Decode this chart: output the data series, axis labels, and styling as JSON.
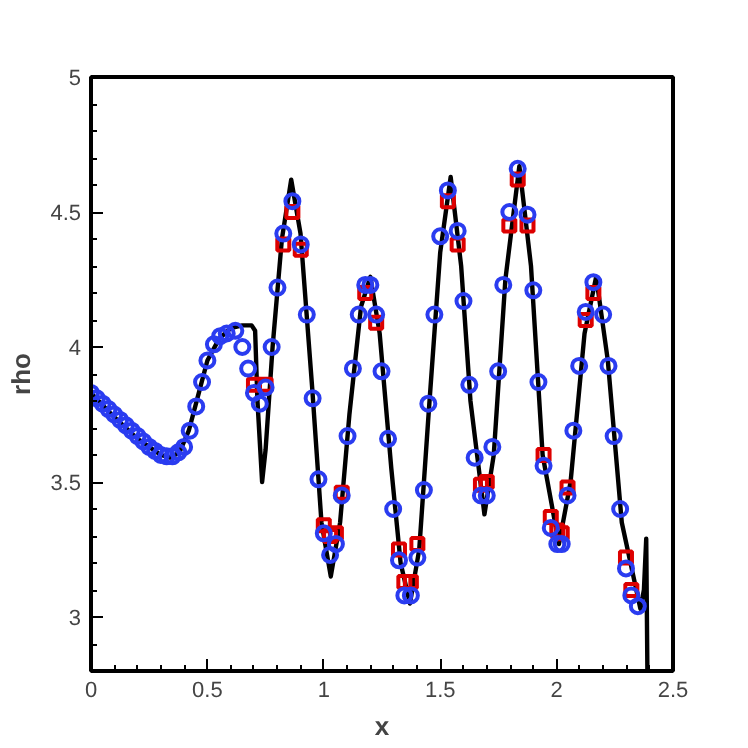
{
  "chart_data": {
    "type": "scatter",
    "xlabel": "x",
    "ylabel": "rho",
    "xlim": [
      0,
      2.5
    ],
    "ylim": [
      2.8,
      5
    ],
    "xticks": [
      0,
      0.5,
      1,
      1.5,
      2,
      2.5
    ],
    "yticks": [
      3,
      3.5,
      4,
      4.5,
      5
    ],
    "grid": false,
    "series": [
      {
        "type": "line",
        "color": "#000000",
        "marker": "none",
        "line_style": "solid",
        "x": [
          0,
          0.1,
          0.2,
          0.3,
          0.34,
          0.38,
          0.42,
          0.46,
          0.5,
          0.55,
          0.6,
          0.65,
          0.69,
          0.705,
          0.715,
          0.735,
          0.75,
          0.78,
          0.82,
          0.86,
          0.9,
          0.95,
          0.99,
          1.03,
          1.07,
          1.11,
          1.16,
          1.2,
          1.24,
          1.29,
          1.33,
          1.37,
          1.41,
          1.45,
          1.5,
          1.545,
          1.59,
          1.63,
          1.69,
          1.73,
          1.78,
          1.84,
          1.89,
          1.94,
          2.01,
          2.06,
          2.12,
          2.17,
          2.22,
          2.28,
          2.36,
          2.375,
          2.385,
          2.39
        ],
        "values": [
          3.83,
          3.74,
          3.66,
          3.6,
          3.59,
          3.61,
          3.69,
          3.82,
          3.95,
          4.03,
          4.07,
          4.08,
          4.08,
          4.06,
          3.8,
          3.5,
          3.62,
          4.0,
          4.4,
          4.62,
          4.42,
          3.85,
          3.35,
          3.15,
          3.35,
          3.75,
          4.15,
          4.26,
          4.05,
          3.55,
          3.2,
          3.05,
          3.25,
          3.75,
          4.35,
          4.63,
          4.3,
          3.8,
          3.38,
          3.6,
          4.25,
          4.67,
          4.3,
          3.6,
          3.27,
          3.5,
          4.05,
          4.26,
          3.95,
          3.35,
          3.03,
          3.1,
          3.29,
          2.8
        ]
      },
      {
        "color": "#dd0000",
        "marker": "square",
        "x": [
          0.7,
          0.75,
          0.826,
          0.865,
          0.901,
          1.0,
          1.027,
          1.052,
          1.077,
          1.178,
          1.225,
          1.323,
          1.346,
          1.374,
          1.402,
          1.533,
          1.575,
          1.675,
          1.7,
          1.797,
          1.833,
          1.875,
          1.944,
          1.975,
          2.003,
          2.022,
          2.047,
          2.125,
          2.158,
          2.298,
          2.321
        ],
        "values": [
          3.86,
          3.86,
          4.38,
          4.5,
          4.36,
          3.34,
          3.3,
          3.31,
          3.46,
          4.2,
          4.09,
          3.25,
          3.13,
          3.13,
          3.27,
          4.54,
          4.38,
          3.49,
          3.5,
          4.45,
          4.62,
          4.45,
          3.6,
          3.37,
          3.32,
          3.31,
          3.48,
          4.1,
          4.2,
          3.22,
          3.1
        ]
      },
      {
        "color": "#2a3cf0",
        "marker": "circle",
        "x": [
          0,
          0.025,
          0.05,
          0.075,
          0.1,
          0.125,
          0.15,
          0.175,
          0.2,
          0.225,
          0.25,
          0.275,
          0.3,
          0.325,
          0.35,
          0.375,
          0.4,
          0.424,
          0.452,
          0.477,
          0.5,
          0.528,
          0.555,
          0.583,
          0.62,
          0.65,
          0.675,
          0.7,
          0.725,
          0.75,
          0.776,
          0.801,
          0.826,
          0.865,
          0.901,
          0.927,
          0.952,
          0.977,
          1.0,
          1.027,
          1.052,
          1.077,
          1.102,
          1.125,
          1.15,
          1.178,
          1.2,
          1.225,
          1.248,
          1.276,
          1.298,
          1.323,
          1.346,
          1.374,
          1.402,
          1.43,
          1.449,
          1.475,
          1.5,
          1.533,
          1.575,
          1.6,
          1.625,
          1.648,
          1.675,
          1.7,
          1.724,
          1.749,
          1.771,
          1.797,
          1.833,
          1.875,
          1.9,
          1.922,
          1.944,
          1.975,
          2.003,
          2.022,
          2.047,
          2.072,
          2.097,
          2.125,
          2.158,
          2.2,
          2.223,
          2.245,
          2.273,
          2.298,
          2.321,
          2.349
        ],
        "values": [
          3.83,
          3.81,
          3.79,
          3.77,
          3.75,
          3.73,
          3.71,
          3.69,
          3.67,
          3.65,
          3.63,
          3.615,
          3.6,
          3.595,
          3.595,
          3.61,
          3.63,
          3.69,
          3.78,
          3.87,
          3.95,
          4.01,
          4.04,
          4.05,
          4.06,
          4.0,
          3.92,
          3.83,
          3.79,
          3.85,
          4.0,
          4.22,
          4.42,
          4.54,
          4.38,
          4.12,
          3.81,
          3.51,
          3.31,
          3.23,
          3.27,
          3.45,
          3.67,
          3.92,
          4.12,
          4.23,
          4.23,
          4.12,
          3.91,
          3.66,
          3.4,
          3.21,
          3.08,
          3.08,
          3.22,
          3.47,
          3.79,
          4.12,
          4.41,
          4.58,
          4.43,
          4.17,
          3.86,
          3.59,
          3.45,
          3.45,
          3.63,
          3.91,
          4.23,
          4.5,
          4.66,
          4.49,
          4.21,
          3.87,
          3.56,
          3.33,
          3.27,
          3.27,
          3.45,
          3.69,
          3.93,
          4.13,
          4.24,
          4.12,
          3.93,
          3.67,
          3.4,
          3.18,
          3.08,
          3.04
        ]
      }
    ]
  }
}
